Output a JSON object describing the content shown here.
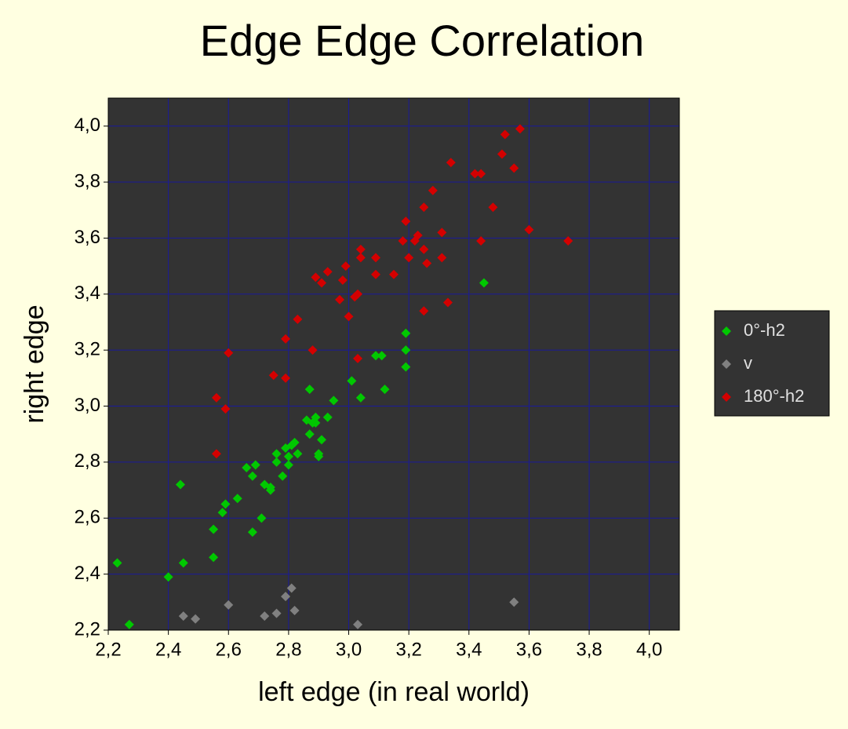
{
  "chart_data": {
    "type": "scatter",
    "title": "Edge Edge Correlation",
    "xlabel": "left edge (in real world)",
    "ylabel": "right edge",
    "xlim": [
      2.2,
      4.1
    ],
    "ylim": [
      2.2,
      4.1
    ],
    "xticks": [
      {
        "value": 2.2,
        "label": "2,2"
      },
      {
        "value": 2.4,
        "label": "2,4"
      },
      {
        "value": 2.6,
        "label": "2,6"
      },
      {
        "value": 2.8,
        "label": "2,8"
      },
      {
        "value": 3.0,
        "label": "3,0"
      },
      {
        "value": 3.2,
        "label": "3,2"
      },
      {
        "value": 3.4,
        "label": "3,4"
      },
      {
        "value": 3.6,
        "label": "3,6"
      },
      {
        "value": 3.8,
        "label": "3,8"
      },
      {
        "value": 4.0,
        "label": "4,0"
      }
    ],
    "yticks": [
      {
        "value": 2.2,
        "label": "2,2"
      },
      {
        "value": 2.4,
        "label": "2,4"
      },
      {
        "value": 2.6,
        "label": "2,6"
      },
      {
        "value": 2.8,
        "label": "2,8"
      },
      {
        "value": 3.0,
        "label": "3,0"
      },
      {
        "value": 3.2,
        "label": "3,2"
      },
      {
        "value": 3.4,
        "label": "3,4"
      },
      {
        "value": 3.6,
        "label": "3,6"
      },
      {
        "value": 3.8,
        "label": "3,8"
      },
      {
        "value": 4.0,
        "label": "4,0"
      }
    ],
    "grid": true,
    "legend": "right",
    "series": [
      {
        "name": "0°-h2",
        "color": "#00c800",
        "x": [
          2.23,
          2.27,
          2.4,
          2.44,
          2.45,
          2.55,
          2.55,
          2.58,
          2.59,
          2.63,
          2.66,
          2.68,
          2.68,
          2.69,
          2.71,
          2.72,
          2.74,
          2.74,
          2.76,
          2.76,
          2.78,
          2.79,
          2.8,
          2.8,
          2.81,
          2.82,
          2.83,
          2.86,
          2.87,
          2.87,
          2.88,
          2.89,
          2.89,
          2.9,
          2.9,
          2.91,
          2.93,
          2.95,
          3.01,
          3.04,
          3.09,
          3.11,
          3.12,
          3.19,
          3.19,
          3.19,
          3.45
        ],
        "values": [
          2.44,
          2.22,
          2.39,
          2.72,
          2.44,
          2.46,
          2.56,
          2.62,
          2.65,
          2.67,
          2.78,
          2.55,
          2.75,
          2.79,
          2.6,
          2.72,
          2.71,
          2.7,
          2.8,
          2.83,
          2.75,
          2.85,
          2.82,
          2.79,
          2.86,
          2.87,
          2.83,
          2.95,
          2.9,
          3.06,
          2.94,
          2.96,
          2.94,
          2.83,
          2.82,
          2.88,
          2.96,
          3.02,
          3.09,
          3.03,
          3.18,
          3.18,
          3.06,
          3.26,
          3.2,
          3.14,
          3.44
        ]
      },
      {
        "name": "v",
        "color": "#808080",
        "x": [
          2.45,
          2.49,
          2.6,
          2.72,
          2.76,
          2.79,
          2.81,
          2.82,
          3.03,
          3.55
        ],
        "values": [
          2.25,
          2.24,
          2.29,
          2.25,
          2.26,
          2.32,
          2.35,
          2.27,
          2.22,
          2.3
        ]
      },
      {
        "name": "180°-h2",
        "color": "#d40000",
        "x": [
          2.56,
          2.56,
          2.59,
          2.6,
          2.75,
          2.79,
          2.79,
          2.83,
          2.88,
          2.89,
          2.91,
          2.93,
          2.97,
          2.98,
          2.99,
          3.0,
          3.02,
          3.03,
          3.03,
          3.04,
          3.04,
          3.09,
          3.09,
          3.15,
          3.18,
          3.19,
          3.2,
          3.22,
          3.23,
          3.25,
          3.25,
          3.26,
          3.25,
          3.28,
          3.31,
          3.31,
          3.33,
          3.34,
          3.42,
          3.44,
          3.44,
          3.48,
          3.51,
          3.52,
          3.55,
          3.57,
          3.6,
          3.73
        ],
        "values": [
          3.03,
          2.83,
          2.99,
          3.19,
          3.11,
          3.1,
          3.24,
          3.31,
          3.2,
          3.46,
          3.44,
          3.48,
          3.38,
          3.45,
          3.5,
          3.32,
          3.39,
          3.4,
          3.17,
          3.56,
          3.53,
          3.53,
          3.47,
          3.47,
          3.59,
          3.66,
          3.53,
          3.59,
          3.61,
          3.56,
          3.71,
          3.51,
          3.34,
          3.77,
          3.62,
          3.53,
          3.37,
          3.87,
          3.83,
          3.83,
          3.59,
          3.71,
          3.9,
          3.97,
          3.85,
          3.99,
          3.63,
          3.59
        ]
      }
    ]
  }
}
